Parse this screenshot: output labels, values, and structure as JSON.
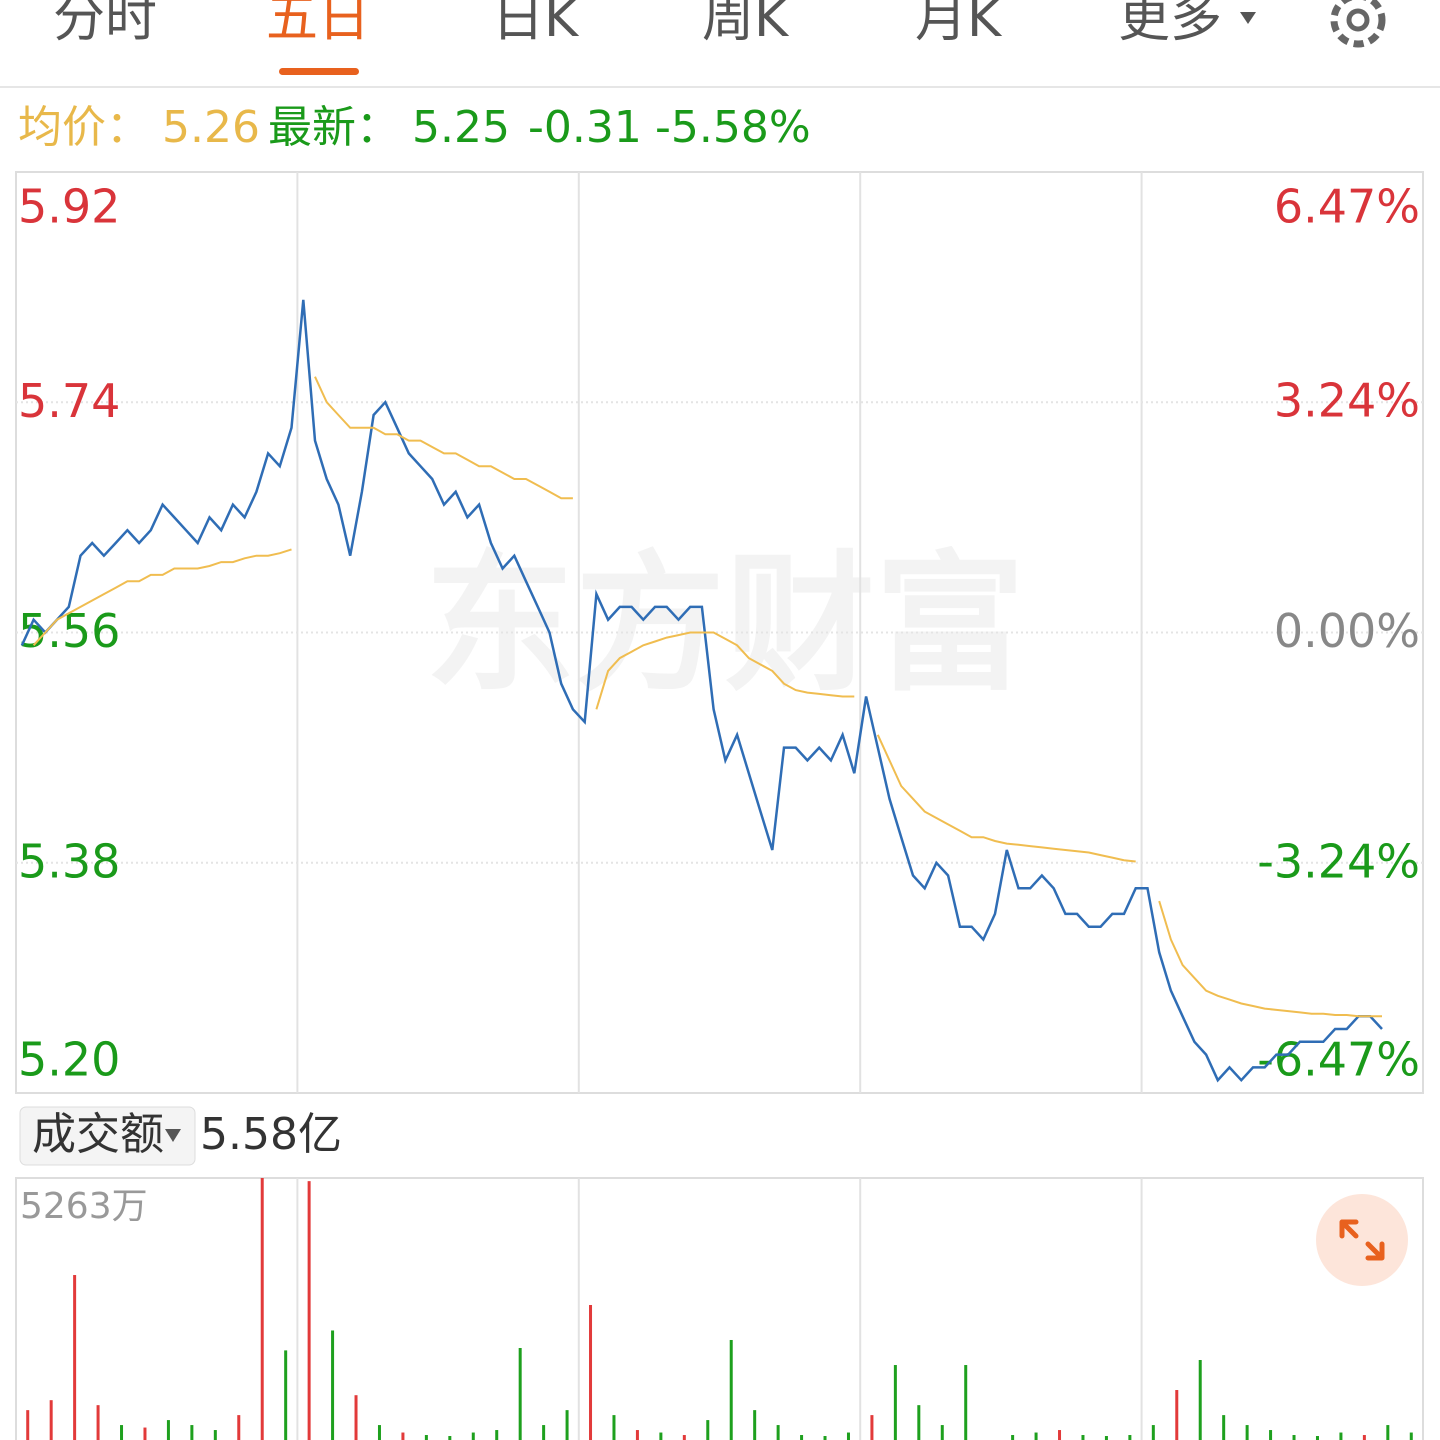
{
  "tabs": [
    "分时",
    "五日",
    "日K",
    "周K",
    "月K",
    "更多"
  ],
  "summary": {
    "avg_label": "均价：",
    "avg": "5.26",
    "latest_label": "最新：",
    "latest": "5.25",
    "change": "-0.31",
    "change_pct": "-5.58%"
  },
  "watermark": "东方财富",
  "chart_data": [
    {
      "type": "line",
      "ylim": [
        5.2,
        5.92
      ],
      "yticks": [
        5.92,
        5.74,
        5.56,
        5.38,
        {
          "value": 5.2,
          "label": "5.20"
        }
      ],
      "y2lim": [
        -6.47,
        6.47
      ],
      "y2ticks": [
        {
          "value": 6.47,
          "label": "6.47%"
        },
        {
          "value": 3.24,
          "label": "3.24%"
        },
        {
          "value": 0,
          "label": "0.00%"
        },
        {
          "value": -3.24,
          "label": "-3.24%"
        },
        {
          "value": -6.47,
          "label": "-6.47%"
        }
      ],
      "series": [
        {
          "color": "#2f6db5",
          "values": [
            5.55,
            5.57,
            5.56,
            5.57,
            5.58,
            5.62,
            5.63,
            5.62,
            5.63,
            5.64,
            5.63,
            5.64,
            5.66,
            5.65,
            5.64,
            5.63,
            5.65,
            5.64,
            5.66,
            5.65,
            5.67,
            5.7,
            5.69,
            5.72,
            5.82,
            5.71,
            5.68,
            5.66,
            5.62,
            5.67,
            5.73,
            5.74,
            5.72,
            5.7,
            5.69,
            5.68,
            5.66,
            5.67,
            5.65,
            5.66,
            5.63,
            5.61,
            5.62,
            5.6,
            5.58,
            5.56,
            5.52,
            5.5,
            5.49,
            5.59,
            5.57,
            5.58,
            5.58,
            5.57,
            5.58,
            5.58,
            5.57,
            5.58,
            5.58,
            5.5,
            5.46,
            5.48,
            5.45,
            5.42,
            5.39,
            5.47,
            5.47,
            5.46,
            5.47,
            5.46,
            5.48,
            5.45,
            5.51,
            5.47,
            5.43,
            5.4,
            5.37,
            5.36,
            5.38,
            5.37,
            5.33,
            5.33,
            5.32,
            5.34,
            5.39,
            5.36,
            5.36,
            5.37,
            5.36,
            5.34,
            5.34,
            5.33,
            5.33,
            5.34,
            5.34,
            5.36,
            5.36,
            5.31,
            5.28,
            5.26,
            5.24,
            5.23,
            5.21,
            5.22,
            5.21,
            5.22,
            5.22,
            5.23,
            5.23,
            5.24,
            5.24,
            5.24,
            5.25,
            5.25,
            5.26,
            5.26,
            5.25,
            null,
            null,
            null
          ]
        },
        {
          "color": "#f0bd50",
          "values": [
            null,
            5.55,
            5.56,
            5.57,
            5.575,
            5.58,
            5.585,
            5.59,
            5.595,
            5.6,
            5.6,
            5.605,
            5.605,
            5.61,
            5.61,
            5.61,
            5.612,
            5.615,
            5.615,
            5.618,
            5.62,
            5.62,
            5.622,
            5.625,
            null,
            5.76,
            5.74,
            5.73,
            5.72,
            5.72,
            5.72,
            5.715,
            5.715,
            5.71,
            5.71,
            5.705,
            5.7,
            5.7,
            5.695,
            5.69,
            5.69,
            5.685,
            5.68,
            5.68,
            5.675,
            5.67,
            5.665,
            5.665,
            null,
            5.5,
            5.53,
            5.54,
            5.545,
            5.55,
            5.553,
            5.556,
            5.558,
            5.56,
            5.56,
            5.56,
            5.555,
            5.55,
            5.54,
            5.535,
            5.53,
            5.52,
            5.515,
            5.513,
            5.512,
            5.511,
            5.51,
            5.51,
            null,
            5.48,
            5.46,
            5.44,
            5.43,
            5.42,
            5.415,
            5.41,
            5.405,
            5.4,
            5.4,
            5.397,
            5.395,
            5.394,
            5.393,
            5.392,
            5.391,
            5.39,
            5.389,
            5.388,
            5.386,
            5.384,
            5.382,
            5.381,
            null,
            5.35,
            5.32,
            5.3,
            5.29,
            5.28,
            5.276,
            5.273,
            5.27,
            5.268,
            5.266,
            5.265,
            5.264,
            5.263,
            5.262,
            5.262,
            5.261,
            5.261,
            5.26,
            5.26,
            5.26,
            null,
            null,
            null
          ]
        }
      ]
    },
    {
      "type": "bar",
      "label": "成交额",
      "total": "5.58亿",
      "ylim": [
        0,
        5263
      ],
      "yticks": [
        {
          "value": 5263,
          "label": "5263万"
        }
      ],
      "series": [
        {
          "color": "#e23a3a",
          "values": [
            600,
            800,
            3314,
            700,
            null,
            250,
            null,
            null,
            null,
            500,
            5263,
            null,
            5200,
            null,
            900,
            null,
            150,
            null,
            null,
            null,
            null,
            null,
            null,
            null,
            2712,
            null,
            200,
            null,
            100,
            null,
            null,
            null,
            null,
            null,
            null,
            null,
            500,
            null,
            null,
            null,
            null,
            null,
            null,
            null,
            200,
            null,
            null,
            null,
            null,
            1004,
            null,
            null,
            null,
            null,
            null,
            null,
            null,
            100,
            null,
            null
          ]
        },
        {
          "color": "#1ea01e",
          "values": [
            null,
            null,
            null,
            null,
            300,
            null,
            400,
            300,
            200,
            null,
            null,
            1800,
            null,
            2200,
            null,
            300,
            null,
            100,
            80,
            150,
            200,
            1848,
            300,
            600,
            null,
            500,
            null,
            150,
            null,
            400,
            2009,
            600,
            300,
            100,
            80,
            150,
            null,
            1506,
            700,
            300,
            1506,
            null,
            100,
            150,
            null,
            100,
            80,
            100,
            300,
            null,
            1607,
            500,
            300,
            200,
            100,
            80,
            150,
            null,
            300,
            150
          ]
        }
      ]
    }
  ]
}
